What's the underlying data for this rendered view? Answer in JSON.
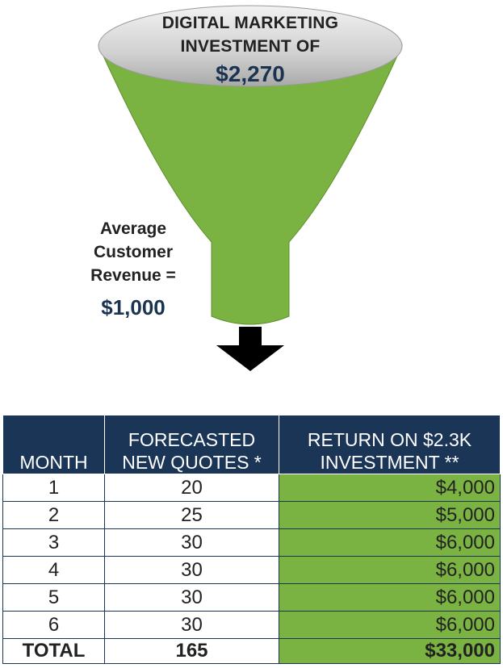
{
  "funnel": {
    "top_line1": "DIGITAL MARKETING",
    "top_line2": "INVESTMENT OF",
    "top_value": "$2,270",
    "avg_line1": "Average",
    "avg_line2": "Customer",
    "avg_line3": "Revenue =",
    "avg_value": "$1,000"
  },
  "colors": {
    "funnel_green": "#7bb342",
    "ellipse_gray": "#c8c8c8",
    "header_navy": "#1b3556",
    "value_navy": "#1a3350",
    "arrow": "#000000"
  },
  "table": {
    "headers": [
      {
        "line1": "",
        "line2": "MONTH"
      },
      {
        "line1": "FORECASTED",
        "line2": "NEW QUOTES *"
      },
      {
        "line1": "RETURN ON $2.3K",
        "line2": "INVESTMENT **"
      }
    ],
    "rows": [
      {
        "month": "1",
        "quotes": "20",
        "return": "$4,000"
      },
      {
        "month": "2",
        "quotes": "25",
        "return": "$5,000"
      },
      {
        "month": "3",
        "quotes": "30",
        "return": "$6,000"
      },
      {
        "month": "4",
        "quotes": "30",
        "return": "$6,000"
      },
      {
        "month": "5",
        "quotes": "30",
        "return": "$6,000"
      },
      {
        "month": "6",
        "quotes": "30",
        "return": "$6,000"
      }
    ],
    "total": {
      "label": "TOTAL",
      "quotes": "165",
      "return": "$33,000"
    }
  }
}
